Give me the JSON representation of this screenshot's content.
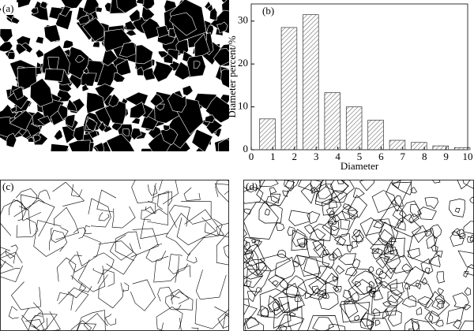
{
  "panels": [
    {
      "label": "(a)"
    },
    {
      "label": "(c)"
    },
    {
      "label": "(d)"
    }
  ],
  "chart_data": {
    "type": "bar",
    "label": "(b)",
    "x_label": "Diameter",
    "y_label": "Diameter percent/%",
    "x": [
      0.75,
      1.75,
      2.75,
      3.75,
      4.75,
      5.75,
      6.75,
      7.75,
      8.75,
      9.75
    ],
    "values": [
      7.2,
      28.5,
      31.5,
      13.3,
      10,
      6.9,
      2.2,
      1.7,
      0.9,
      0.5
    ],
    "color": "#555555",
    "xlim": [
      0,
      10
    ],
    "xticks": [
      0,
      1,
      2,
      3,
      4,
      5,
      6,
      7,
      8,
      9,
      10
    ],
    "ylim": [
      0,
      34
    ],
    "yticks": [
      0,
      10,
      20,
      30
    ]
  }
}
